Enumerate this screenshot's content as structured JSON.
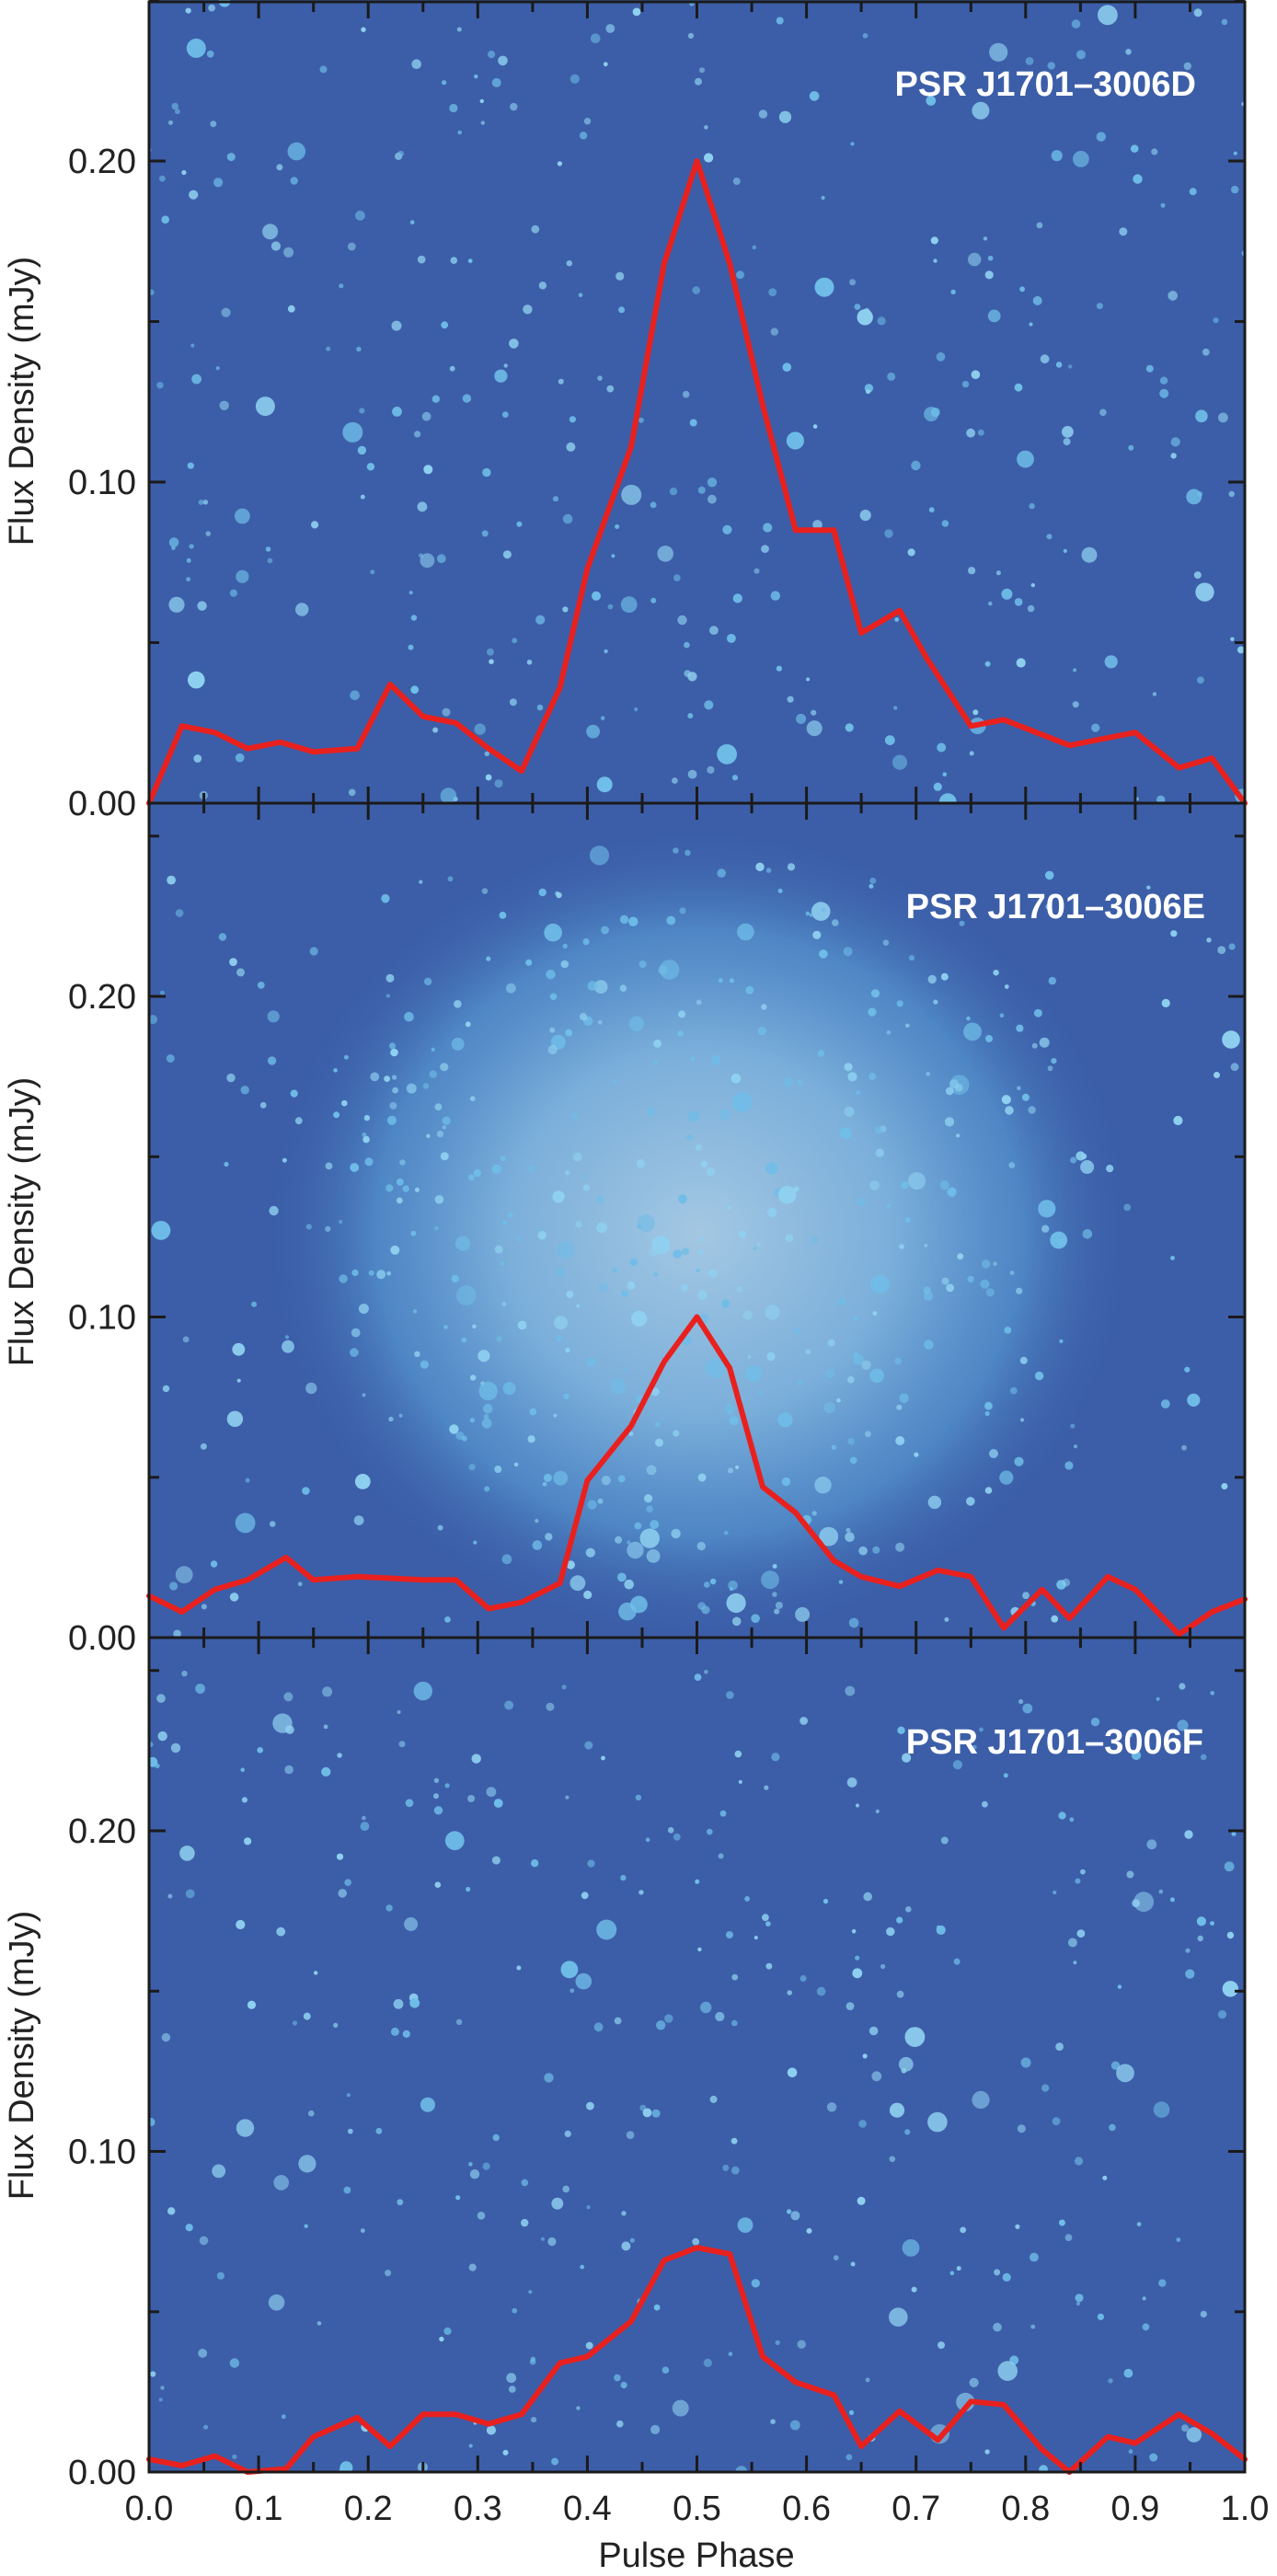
{
  "chart_data": [
    {
      "type": "line",
      "title": "PSR J1701–3006D",
      "xlabel": "",
      "ylabel": "Flux Density (mJy)",
      "xlim": [
        0,
        1
      ],
      "ylim": [
        0,
        0.25
      ],
      "y_ticks": [
        "0.00",
        "0.10",
        "0.20"
      ],
      "background": "sparse-stars",
      "series": [
        {
          "color": "#e8211f",
          "x": [
            0.0,
            0.03,
            0.06,
            0.09,
            0.12,
            0.15,
            0.19,
            0.22,
            0.25,
            0.28,
            0.31,
            0.34,
            0.375,
            0.4,
            0.44,
            0.47,
            0.5,
            0.53,
            0.56,
            0.59,
            0.625,
            0.65,
            0.685,
            0.71,
            0.75,
            0.78,
            0.84,
            0.9,
            0.94,
            0.97,
            1.0
          ],
          "y": [
            0.0,
            0.024,
            0.022,
            0.017,
            0.019,
            0.016,
            0.017,
            0.037,
            0.027,
            0.025,
            0.017,
            0.01,
            0.036,
            0.073,
            0.111,
            0.168,
            0.2,
            0.168,
            0.124,
            0.085,
            0.085,
            0.053,
            0.06,
            0.045,
            0.024,
            0.026,
            0.018,
            0.022,
            0.011,
            0.014,
            0.0
          ]
        }
      ]
    },
    {
      "type": "line",
      "title": "PSR J1701–3006E",
      "xlabel": "",
      "ylabel": "Flux Density (mJy)",
      "xlim": [
        0,
        1
      ],
      "ylim": [
        0,
        0.25
      ],
      "y_ticks": [
        "0.00",
        "0.10",
        "0.20"
      ],
      "background": "cluster-core",
      "series": [
        {
          "color": "#e8211f",
          "x": [
            0.0,
            0.03,
            0.06,
            0.09,
            0.125,
            0.15,
            0.19,
            0.25,
            0.28,
            0.31,
            0.34,
            0.375,
            0.4,
            0.44,
            0.47,
            0.5,
            0.53,
            0.56,
            0.59,
            0.625,
            0.65,
            0.685,
            0.72,
            0.75,
            0.78,
            0.815,
            0.84,
            0.875,
            0.9,
            0.94,
            0.97,
            1.0
          ],
          "y": [
            0.013,
            0.008,
            0.015,
            0.018,
            0.025,
            0.018,
            0.019,
            0.018,
            0.018,
            0.009,
            0.011,
            0.017,
            0.049,
            0.066,
            0.086,
            0.1,
            0.084,
            0.047,
            0.039,
            0.024,
            0.019,
            0.016,
            0.021,
            0.019,
            0.003,
            0.015,
            0.006,
            0.019,
            0.015,
            0.001,
            0.008,
            0.012
          ]
        }
      ]
    },
    {
      "type": "line",
      "title": "PSR J1701–3006F",
      "xlabel": "Pulse Phase",
      "ylabel": "Flux Density (mJy)",
      "xlim": [
        0,
        1
      ],
      "ylim": [
        0,
        0.25
      ],
      "x_ticks": [
        "0.0",
        "0.1",
        "0.2",
        "0.3",
        "0.4",
        "0.5",
        "0.6",
        "0.7",
        "0.8",
        "0.9",
        "1.0"
      ],
      "y_ticks": [
        "0.00",
        "0.10",
        "0.20"
      ],
      "background": "sparse-stars",
      "series": [
        {
          "color": "#e8211f",
          "x": [
            0.0,
            0.03,
            0.06,
            0.09,
            0.125,
            0.15,
            0.19,
            0.22,
            0.25,
            0.28,
            0.31,
            0.34,
            0.375,
            0.4,
            0.44,
            0.47,
            0.5,
            0.53,
            0.56,
            0.59,
            0.625,
            0.65,
            0.685,
            0.72,
            0.75,
            0.78,
            0.815,
            0.84,
            0.875,
            0.9,
            0.94,
            0.97,
            1.0
          ],
          "y": [
            0.004,
            0.002,
            0.005,
            0.0,
            0.001,
            0.011,
            0.017,
            0.008,
            0.018,
            0.018,
            0.015,
            0.018,
            0.034,
            0.036,
            0.047,
            0.066,
            0.07,
            0.068,
            0.036,
            0.028,
            0.024,
            0.008,
            0.019,
            0.01,
            0.022,
            0.021,
            0.007,
            0.0,
            0.011,
            0.009,
            0.018,
            0.012,
            0.004
          ]
        }
      ]
    }
  ]
}
